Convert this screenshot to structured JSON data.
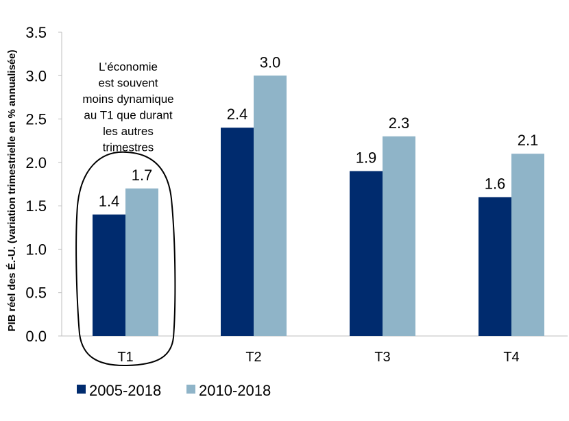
{
  "chart_data": {
    "type": "bar",
    "categories": [
      "T1",
      "T2",
      "T3",
      "T4"
    ],
    "series": [
      {
        "name": "2005-2018",
        "values": [
          1.4,
          2.4,
          1.9,
          1.6
        ],
        "labels": [
          "1.4",
          "2.4",
          "1.9",
          "1.6"
        ],
        "color": "#002b6e"
      },
      {
        "name": "2010-2018",
        "values": [
          1.7,
          3.0,
          2.3,
          2.1
        ],
        "labels": [
          "1.7",
          "3.0",
          "2.3",
          "2.1"
        ],
        "color": "#8fb4c8"
      }
    ],
    "title": "",
    "xlabel": "",
    "ylabel": "PIB réel des É.-U. (variation trimestrielle en % annualisée)",
    "ylim": [
      0,
      3.5
    ],
    "yticks": [
      "0.0",
      "0.5",
      "1.0",
      "1.5",
      "2.0",
      "2.5",
      "3.0",
      "3.5"
    ],
    "grid": false,
    "legend": "bottom-left",
    "annotation": {
      "lines": [
        "L’économie",
        "est souvent",
        "moins  dynamique",
        "au T1 que durant",
        "les autres",
        "trimestres"
      ],
      "highlight_category": "T1",
      "highlight_shape": "circled"
    }
  }
}
